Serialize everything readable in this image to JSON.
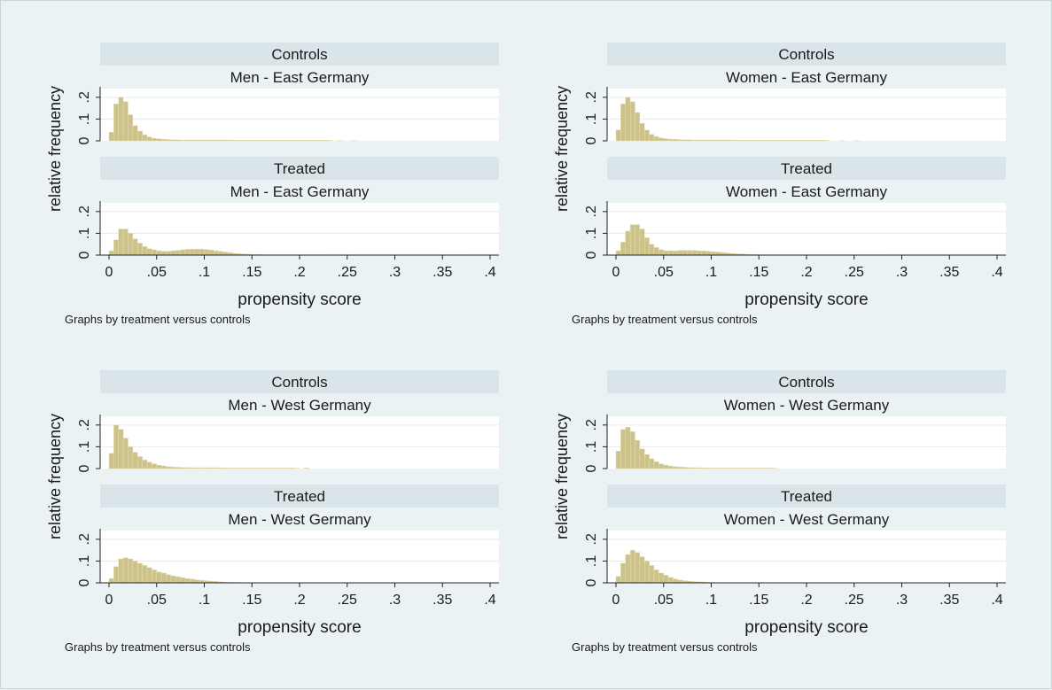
{
  "chart_data": [
    {
      "type": "bar",
      "title": "",
      "xlabel": "propensity score",
      "ylabel": "relative frequency",
      "note": "Graphs by treatment versus controls",
      "xlim": [
        0,
        0.4
      ],
      "ylim": [
        0,
        0.24
      ],
      "x_ticks": [
        "0",
        ".05",
        ".1",
        ".15",
        ".2",
        ".25",
        ".3",
        ".35",
        ".4"
      ],
      "y_ticks": [
        "0",
        ".1",
        ".2"
      ],
      "grid": true,
      "bar_color": "#cdc28a",
      "panels": [
        {
          "group": "Controls",
          "subgroup": "Men - East Germany",
          "bin_start": 0,
          "bin_width": 0.005,
          "values": [
            0.04,
            0.17,
            0.2,
            0.18,
            0.12,
            0.07,
            0.045,
            0.028,
            0.018,
            0.012,
            0.009,
            0.007,
            0.006,
            0.005,
            0.005,
            0.004,
            0.004,
            0.004,
            0.004,
            0.004,
            0.004,
            0.004,
            0.004,
            0.004,
            0.004,
            0.004,
            0.003,
            0.003,
            0.003,
            0.003,
            0.003,
            0.003,
            0.003,
            0.003,
            0.003,
            0.003,
            0.003,
            0.003,
            0.003,
            0.003,
            0.003,
            0.003,
            0.003,
            0.003,
            0.003,
            0.003,
            0.002,
            0.0,
            0.002,
            0.0,
            0.0,
            0.002
          ]
        },
        {
          "group": "Treated",
          "subgroup": "Men - East Germany",
          "bin_start": 0,
          "bin_width": 0.005,
          "values": [
            0.02,
            0.07,
            0.12,
            0.12,
            0.1,
            0.075,
            0.055,
            0.04,
            0.03,
            0.025,
            0.02,
            0.018,
            0.018,
            0.02,
            0.022,
            0.025,
            0.027,
            0.028,
            0.028,
            0.028,
            0.026,
            0.024,
            0.02,
            0.017,
            0.014,
            0.011,
            0.008,
            0.006,
            0.005,
            0.004,
            0.003,
            0.003,
            0.002,
            0.002,
            0.002,
            0.002,
            0.002,
            0.002,
            0.002,
            0.002,
            0.002,
            0.002,
            0.002,
            0.002,
            0.002,
            0.0,
            0.0,
            0.0,
            0.0,
            0.0,
            0.002,
            0.0,
            0.0,
            0.0,
            0.0,
            0.0,
            0.0,
            0.0,
            0.0,
            0.0,
            0.0,
            0.0,
            0.0,
            0.0,
            0.0,
            0.0,
            0.0,
            0.0,
            0.0,
            0.0,
            0.002,
            0.0,
            0.0,
            0.002
          ]
        },
        {
          "group": "Controls",
          "subgroup": "Women - East Germany",
          "bin_start": 0,
          "bin_width": 0.005,
          "values": [
            0.05,
            0.17,
            0.2,
            0.18,
            0.13,
            0.08,
            0.05,
            0.03,
            0.02,
            0.013,
            0.01,
            0.008,
            0.007,
            0.006,
            0.005,
            0.005,
            0.004,
            0.004,
            0.004,
            0.004,
            0.004,
            0.004,
            0.004,
            0.004,
            0.004,
            0.003,
            0.003,
            0.003,
            0.003,
            0.003,
            0.003,
            0.003,
            0.003,
            0.003,
            0.003,
            0.003,
            0.003,
            0.003,
            0.003,
            0.003,
            0.003,
            0.003,
            0.003,
            0.003,
            0.002,
            0.0,
            0.0,
            0.002,
            0.0,
            0.0,
            0.002
          ]
        },
        {
          "group": "Treated",
          "subgroup": "Women - East Germany",
          "bin_start": 0,
          "bin_width": 0.005,
          "values": [
            0.02,
            0.06,
            0.11,
            0.14,
            0.14,
            0.12,
            0.08,
            0.05,
            0.035,
            0.025,
            0.02,
            0.02,
            0.02,
            0.022,
            0.022,
            0.022,
            0.022,
            0.02,
            0.02,
            0.018,
            0.016,
            0.014,
            0.012,
            0.01,
            0.008,
            0.006,
            0.005,
            0.004,
            0.003,
            0.003,
            0.002,
            0.002,
            0.002,
            0.002,
            0.002,
            0.002,
            0.002,
            0.002,
            0.002,
            0.002,
            0.002,
            0.002,
            0.002,
            0.002,
            0.002,
            0.002,
            0.002,
            0.002,
            0.002,
            0.002,
            0.002,
            0.002,
            0.002,
            0.002,
            0.002,
            0.002
          ]
        },
        {
          "group": "Controls",
          "subgroup": "Men - West Germany",
          "bin_start": 0,
          "bin_width": 0.005,
          "values": [
            0.07,
            0.2,
            0.18,
            0.14,
            0.1,
            0.075,
            0.055,
            0.04,
            0.03,
            0.022,
            0.016,
            0.012,
            0.009,
            0.007,
            0.006,
            0.005,
            0.005,
            0.004,
            0.004,
            0.004,
            0.004,
            0.004,
            0.004,
            0.004,
            0.003,
            0.003,
            0.003,
            0.003,
            0.003,
            0.003,
            0.003,
            0.003,
            0.003,
            0.003,
            0.003,
            0.003,
            0.003,
            0.003,
            0.003,
            0.002,
            0.0,
            0.003
          ]
        },
        {
          "group": "Treated",
          "subgroup": "Men - West Germany",
          "bin_start": 0,
          "bin_width": 0.005,
          "values": [
            0.02,
            0.075,
            0.11,
            0.115,
            0.11,
            0.1,
            0.09,
            0.08,
            0.07,
            0.06,
            0.05,
            0.045,
            0.038,
            0.032,
            0.028,
            0.024,
            0.02,
            0.017,
            0.014,
            0.012,
            0.01,
            0.008,
            0.007,
            0.005,
            0.004,
            0.003,
            0.002,
            0.002
          ]
        },
        {
          "group": "Controls",
          "subgroup": "Women - West Germany",
          "bin_start": 0,
          "bin_width": 0.005,
          "values": [
            0.08,
            0.18,
            0.19,
            0.17,
            0.13,
            0.09,
            0.065,
            0.045,
            0.032,
            0.022,
            0.016,
            0.012,
            0.009,
            0.007,
            0.006,
            0.005,
            0.004,
            0.004,
            0.004,
            0.003,
            0.003,
            0.003,
            0.003,
            0.003,
            0.003,
            0.003,
            0.003,
            0.003,
            0.003,
            0.003,
            0.003,
            0.003,
            0.003,
            0.002
          ]
        },
        {
          "group": "Treated",
          "subgroup": "Women - West Germany",
          "bin_start": 0,
          "bin_width": 0.005,
          "values": [
            0.03,
            0.09,
            0.13,
            0.15,
            0.14,
            0.12,
            0.1,
            0.08,
            0.06,
            0.045,
            0.035,
            0.025,
            0.018,
            0.013,
            0.01,
            0.008,
            0.006,
            0.005,
            0.004,
            0.003,
            0.002
          ]
        }
      ]
    }
  ]
}
